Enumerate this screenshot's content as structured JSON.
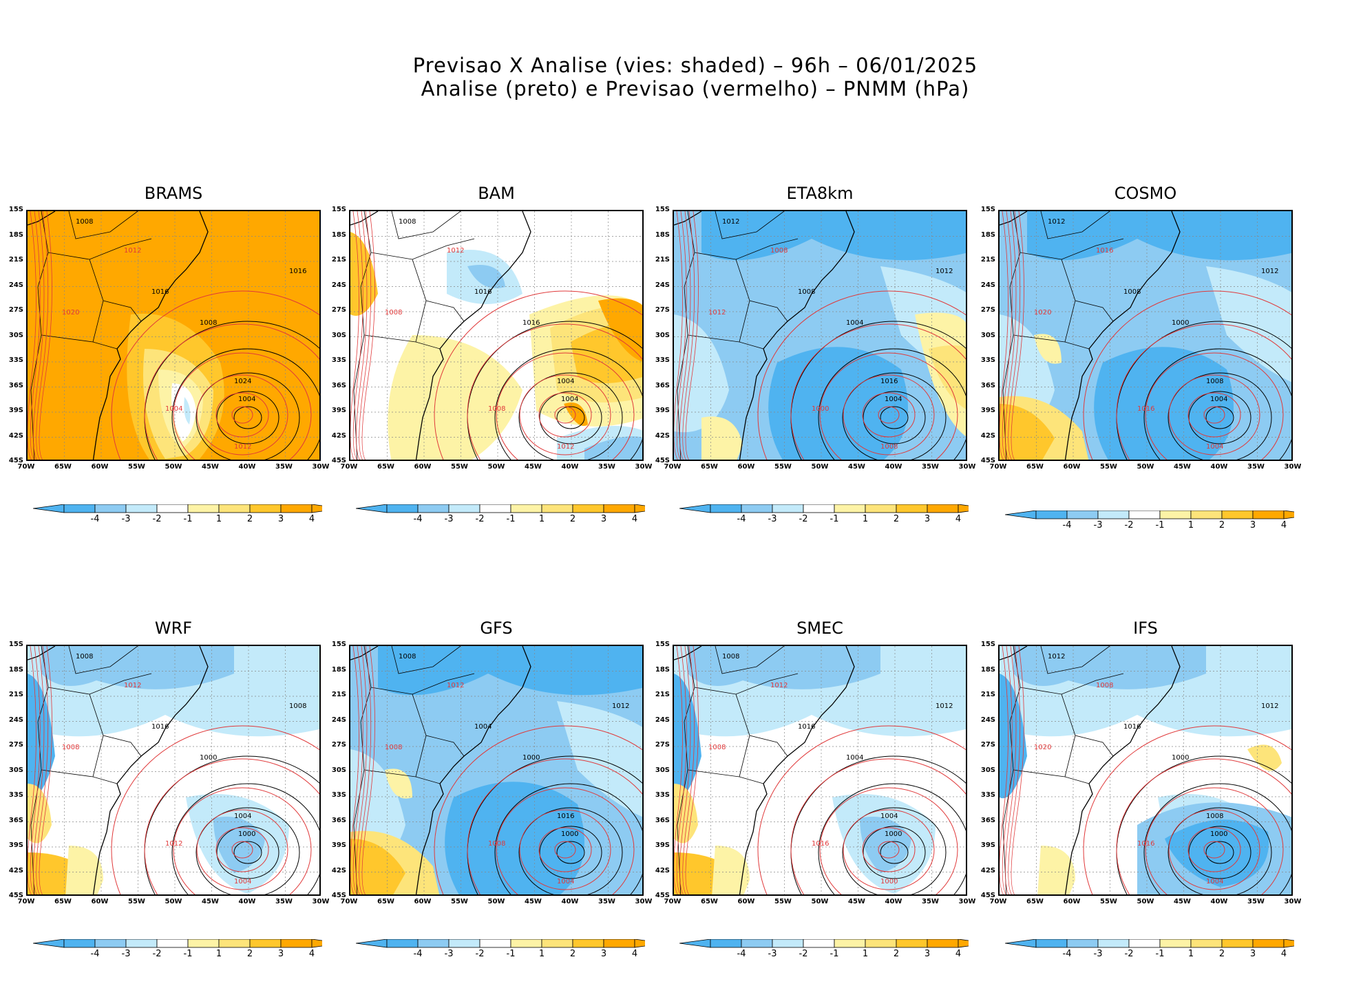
{
  "title": {
    "line1": "Previsao X Analise (vies: shaded) – 96h – 06/01/2025",
    "line2": "Analise (preto) e Previsao (vermelho) – PNMM (hPa)"
  },
  "colors": {
    "neg4": "#4fb3f0",
    "neg3": "#8dcbf2",
    "neg2": "#c3eafa",
    "neg1": "#ffffff",
    "pos1": "#fdf3a6",
    "pos2": "#fde47a",
    "pos3": "#ffc72c",
    "pos4": "#ffa800",
    "analysis_contour": "#000000",
    "forecast_contour": "#e0393a"
  },
  "latitude_labels": [
    "15S",
    "18S",
    "21S",
    "24S",
    "27S",
    "30S",
    "33S",
    "36S",
    "39S",
    "42S",
    "45S"
  ],
  "longitude_labels": [
    "70W",
    "65W",
    "60W",
    "55W",
    "50W",
    "45W",
    "40W",
    "35W",
    "30W"
  ],
  "colorbar_labels": [
    "-4",
    "-3",
    "-2",
    "-1",
    "1",
    "2",
    "3",
    "4"
  ],
  "panels": [
    {
      "name": "BRAMS",
      "bias": "positive",
      "low_center_label": "1004",
      "contour_labels": [
        "1008",
        "1012",
        "1016",
        "1020",
        "1024",
        "1012",
        "1008",
        "1004",
        "1016"
      ]
    },
    {
      "name": "BAM",
      "bias": "mixed",
      "low_center_label": "1004",
      "contour_labels": [
        "1008",
        "1012",
        "1016",
        "1008",
        "1004",
        "1012",
        "1016",
        "1008"
      ]
    },
    {
      "name": "ETA8km",
      "bias": "negative",
      "low_center_label": "1004",
      "contour_labels": [
        "1012",
        "1008",
        "1008",
        "1012",
        "1016",
        "1008",
        "1004",
        "1000",
        "1012"
      ]
    },
    {
      "name": "COSMO",
      "bias": "negative",
      "low_center_label": "1004",
      "contour_labels": [
        "1012",
        "1016",
        "1008",
        "1020",
        "1008",
        "1004",
        "1000",
        "1016",
        "1012"
      ]
    },
    {
      "name": "WRF",
      "bias": "slightly-negative",
      "low_center_label": "1000",
      "contour_labels": [
        "1008",
        "1012",
        "1016",
        "1008",
        "1004",
        "1004",
        "1000",
        "1012",
        "1008"
      ]
    },
    {
      "name": "GFS",
      "bias": "negative",
      "low_center_label": "1000",
      "contour_labels": [
        "1008",
        "1012",
        "1004",
        "1008",
        "1016",
        "1004",
        "1000",
        "1008",
        "1012"
      ]
    },
    {
      "name": "SMEC",
      "bias": "slightly-negative",
      "low_center_label": "1000",
      "contour_labels": [
        "1008",
        "1012",
        "1016",
        "1008",
        "1004",
        "1000",
        "1004",
        "1016",
        "1012"
      ]
    },
    {
      "name": "IFS",
      "bias": "slightly-negative",
      "low_center_label": "1000",
      "contour_labels": [
        "1012",
        "1008",
        "1016",
        "1020",
        "1008",
        "1004",
        "1000",
        "1016",
        "1012"
      ]
    }
  ]
}
